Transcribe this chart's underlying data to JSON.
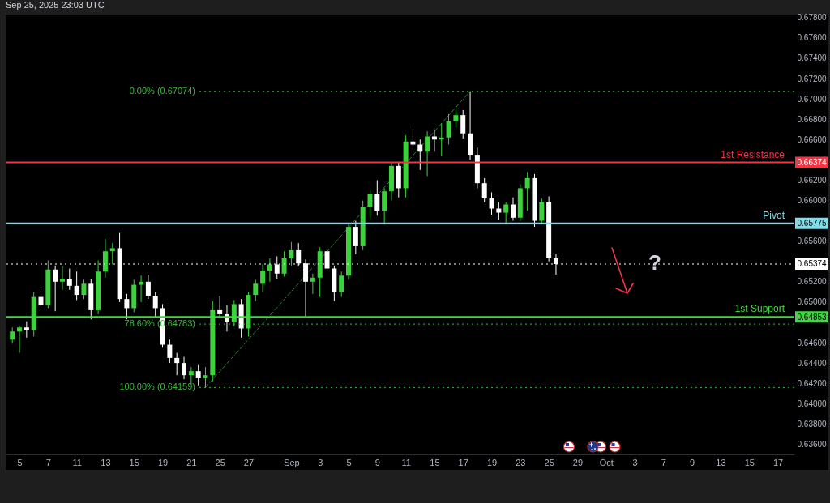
{
  "chart_data": {
    "type": "candlestick",
    "title": "Sep 25, 2025 23:03 UTC",
    "categories": [
      null,
      "5",
      null,
      null,
      null,
      "7",
      null,
      null,
      null,
      "11",
      null,
      null,
      null,
      "13",
      null,
      null,
      null,
      "15",
      null,
      null,
      null,
      "19",
      null,
      null,
      null,
      "21",
      null,
      null,
      null,
      "25",
      null,
      null,
      null,
      "27",
      null,
      null,
      null,
      null,
      null,
      "Sep",
      null,
      null,
      null,
      "3",
      null,
      null,
      null,
      "5",
      null,
      null,
      null,
      "9",
      null,
      null,
      null,
      "11",
      null,
      null,
      null,
      "15",
      null,
      null,
      null,
      "17",
      null,
      null,
      null,
      "19",
      null,
      null,
      null,
      "23",
      null,
      null,
      null,
      "25",
      null,
      null,
      null,
      "29",
      null,
      null,
      null,
      "Oct",
      null,
      null,
      null,
      "3",
      null,
      null,
      null,
      "7",
      null,
      null,
      null,
      "9",
      null,
      null,
      null,
      "13",
      null,
      null,
      null,
      "15",
      null,
      null,
      null,
      "17",
      null
    ],
    "ohlc": [
      [
        0.6463,
        0.6475,
        0.6459,
        0.6471
      ],
      [
        0.6471,
        0.6477,
        0.645,
        0.6475
      ],
      [
        0.6475,
        0.6481,
        0.6465,
        0.6472
      ],
      [
        0.6472,
        0.651,
        0.6466,
        0.6505
      ],
      [
        0.6505,
        0.6511,
        0.6494,
        0.6497
      ],
      [
        0.6497,
        0.6541,
        0.6494,
        0.6532
      ],
      [
        0.6532,
        0.6536,
        0.6491,
        0.652
      ],
      [
        0.652,
        0.6535,
        0.6512,
        0.6523
      ],
      [
        0.6523,
        0.6533,
        0.6512,
        0.6516
      ],
      [
        0.6516,
        0.653,
        0.6502,
        0.6507
      ],
      [
        0.6507,
        0.6522,
        0.6503,
        0.6518
      ],
      [
        0.6518,
        0.6523,
        0.6483,
        0.6492
      ],
      [
        0.6492,
        0.6541,
        0.6488,
        0.653
      ],
      [
        0.653,
        0.6562,
        0.6524,
        0.655
      ],
      [
        0.655,
        0.6558,
        0.6537,
        0.6553
      ],
      [
        0.6553,
        0.6568,
        0.65,
        0.6503
      ],
      [
        0.6503,
        0.6508,
        0.6483,
        0.6494
      ],
      [
        0.6494,
        0.6522,
        0.649,
        0.6517
      ],
      [
        0.6517,
        0.6526,
        0.65,
        0.652
      ],
      [
        0.652,
        0.6527,
        0.6503,
        0.6506
      ],
      [
        0.6506,
        0.651,
        0.6484,
        0.6494
      ],
      [
        0.6494,
        0.6498,
        0.6455,
        0.6458
      ],
      [
        0.6458,
        0.6463,
        0.644,
        0.6445
      ],
      [
        0.6445,
        0.645,
        0.6428,
        0.644
      ],
      [
        0.644,
        0.6446,
        0.6424,
        0.6428
      ],
      [
        0.6428,
        0.6436,
        0.6419,
        0.6432
      ],
      [
        0.6432,
        0.6438,
        0.6418,
        0.6425
      ],
      [
        0.6425,
        0.6436,
        0.64159,
        0.6428
      ],
      [
        0.6428,
        0.6501,
        0.6422,
        0.6492
      ],
      [
        0.6492,
        0.6506,
        0.6484,
        0.6488
      ],
      [
        0.6488,
        0.6497,
        0.6471,
        0.648
      ],
      [
        0.648,
        0.6502,
        0.6476,
        0.6498
      ],
      [
        0.6498,
        0.6503,
        0.6465,
        0.6474
      ],
      [
        0.6474,
        0.651,
        0.6466,
        0.6507
      ],
      [
        0.6507,
        0.6522,
        0.6501,
        0.6518
      ],
      [
        0.6518,
        0.6537,
        0.651,
        0.6531
      ],
      [
        0.6531,
        0.6543,
        0.652,
        0.6537
      ],
      [
        0.6537,
        0.6545,
        0.6523,
        0.6528
      ],
      [
        0.6528,
        0.655,
        0.6525,
        0.6543
      ],
      [
        0.6543,
        0.6559,
        0.6536,
        0.6551
      ],
      [
        0.6551,
        0.6558,
        0.6535,
        0.6538
      ],
      [
        0.6538,
        0.6542,
        0.64853,
        0.652
      ],
      [
        0.652,
        0.6528,
        0.6508,
        0.6524
      ],
      [
        0.6524,
        0.6554,
        0.6505,
        0.655
      ],
      [
        0.655,
        0.6555,
        0.653,
        0.6533
      ],
      [
        0.6533,
        0.6536,
        0.6501,
        0.651
      ],
      [
        0.651,
        0.653,
        0.6505,
        0.6526
      ],
      [
        0.6526,
        0.6578,
        0.6522,
        0.6574
      ],
      [
        0.6574,
        0.658,
        0.6547,
        0.6555
      ],
      [
        0.6555,
        0.66,
        0.6551,
        0.6594
      ],
      [
        0.6594,
        0.661,
        0.6583,
        0.6606
      ],
      [
        0.6606,
        0.662,
        0.6585,
        0.659
      ],
      [
        0.659,
        0.6612,
        0.65775,
        0.6609
      ],
      [
        0.6609,
        0.6637,
        0.66,
        0.6634
      ],
      [
        0.6634,
        0.6638,
        0.6603,
        0.6612
      ],
      [
        0.6612,
        0.6664,
        0.6603,
        0.6658
      ],
      [
        0.6658,
        0.667,
        0.665,
        0.6655
      ],
      [
        0.6655,
        0.666,
        0.663,
        0.6648
      ],
      [
        0.6648,
        0.6668,
        0.6624,
        0.6663
      ],
      [
        0.6663,
        0.667,
        0.6648,
        0.666
      ],
      [
        0.666,
        0.6676,
        0.6644,
        0.6662
      ],
      [
        0.6662,
        0.6685,
        0.6655,
        0.6678
      ],
      [
        0.6678,
        0.669,
        0.6672,
        0.6684
      ],
      [
        0.6684,
        0.6689,
        0.6661,
        0.6666
      ],
      [
        0.6666,
        0.67074,
        0.664,
        0.6645
      ],
      [
        0.6645,
        0.6652,
        0.6612,
        0.6617
      ],
      [
        0.6617,
        0.6622,
        0.6598,
        0.6602
      ],
      [
        0.6602,
        0.6608,
        0.6586,
        0.6592
      ],
      [
        0.6592,
        0.6598,
        0.6581,
        0.6588
      ],
      [
        0.6588,
        0.6598,
        0.6578,
        0.6596
      ],
      [
        0.6596,
        0.6603,
        0.658,
        0.6583
      ],
      [
        0.6583,
        0.6616,
        0.658,
        0.6612
      ],
      [
        0.6612,
        0.6628,
        0.659,
        0.6622
      ],
      [
        0.6622,
        0.6626,
        0.6574,
        0.658
      ],
      [
        0.658,
        0.6602,
        0.6577,
        0.6598
      ],
      [
        0.6598,
        0.6604,
        0.654,
        0.6543
      ],
      [
        0.6543,
        0.6547,
        0.6527,
        0.65374
      ],
      null,
      null,
      null,
      null,
      null,
      null,
      null,
      null,
      null,
      null,
      null,
      null,
      null,
      null,
      null,
      null,
      null,
      null,
      null,
      null,
      null,
      null,
      null,
      null,
      null,
      null,
      null,
      null,
      null,
      null,
      null,
      null
    ],
    "colors": [
      "#3cd23c",
      "#3cd23c",
      "#ffffff",
      "#3cd23c",
      "#ffffff",
      "#3cd23c",
      "#ffffff",
      "#3cd23c",
      "#ffffff",
      "#ffffff",
      "#3cd23c",
      "#ffffff",
      "#3cd23c",
      "#3cd23c",
      "#3cd23c",
      "#ffffff",
      "#ffffff",
      "#3cd23c",
      "#3cd23c",
      "#ffffff",
      "#ffffff",
      "#ffffff",
      "#ffffff",
      "#ffffff",
      "#ffffff",
      "#3cd23c",
      "#ffffff",
      "#3cd23c",
      "#3cd23c",
      "#ffffff",
      "#ffffff",
      "#3cd23c",
      "#ffffff",
      "#3cd23c",
      "#3cd23c",
      "#3cd23c",
      "#3cd23c",
      "#ffffff",
      "#3cd23c",
      "#3cd23c",
      "#ffffff",
      "#ffffff",
      "#3cd23c",
      "#3cd23c",
      "#ffffff",
      "#ffffff",
      "#3cd23c",
      "#3cd23c",
      "#ffffff",
      "#3cd23c",
      "#3cd23c",
      "#ffffff",
      "#3cd23c",
      "#3cd23c",
      "#ffffff",
      "#3cd23c",
      "#ffffff",
      "#ffffff",
      "#3cd23c",
      "#ffffff",
      "#3cd23c",
      "#3cd23c",
      "#3cd23c",
      "#ffffff",
      "#ffffff",
      "#ffffff",
      "#ffffff",
      "#ffffff",
      "#ffffff",
      "#3cd23c",
      "#ffffff",
      "#3cd23c",
      "#3cd23c",
      "#ffffff",
      "#3cd23c",
      "#ffffff",
      "#ffffff",
      null,
      null,
      null,
      null,
      null,
      null,
      null,
      null,
      null,
      null,
      null,
      null,
      null,
      null,
      null,
      null,
      null,
      null,
      null,
      null,
      null,
      null,
      null,
      null,
      null,
      null,
      null,
      null,
      null,
      null,
      null,
      null
    ],
    "series": [
      {
        "type": "line",
        "color": "#2e7d32",
        "line_style": "dashed",
        "values": [
          null,
          null,
          null,
          null,
          null,
          null,
          null,
          null,
          null,
          null,
          null,
          null,
          null,
          null,
          null,
          null,
          null,
          null,
          null,
          null,
          null,
          null,
          null,
          null,
          null,
          null,
          null,
          0.64159,
          null,
          null,
          null,
          null,
          null,
          null,
          null,
          null,
          null,
          null,
          null,
          null,
          null,
          null,
          null,
          null,
          null,
          null,
          null,
          null,
          null,
          null,
          null,
          null,
          null,
          null,
          null,
          null,
          null,
          null,
          null,
          null,
          null,
          null,
          null,
          null,
          0.67074,
          null,
          null,
          null,
          null,
          null,
          null,
          null,
          null,
          null,
          null,
          null,
          null,
          null,
          null,
          null,
          null,
          null,
          null,
          null,
          null,
          null,
          null,
          null,
          null,
          null,
          null,
          null,
          null,
          null,
          null,
          null,
          null,
          null,
          null,
          null,
          null,
          null,
          null,
          null,
          null,
          null,
          null,
          null,
          null
        ]
      }
    ],
    "ylim": [
      0.635,
      0.6783
    ],
    "yticks": [
      {
        "value": 0.636,
        "label": "0.63600"
      },
      {
        "value": 0.638,
        "label": "0.63800"
      },
      {
        "value": 0.64,
        "label": "0.64000"
      },
      {
        "value": 0.642,
        "label": "0.64200"
      },
      {
        "value": 0.644,
        "label": "0.64400"
      },
      {
        "value": 0.646,
        "label": "0.64600"
      },
      {
        "value": 0.64853,
        "label": "0.64853"
      },
      {
        "value": 0.65,
        "label": "0.65000"
      },
      {
        "value": 0.652,
        "label": "0.65200"
      },
      {
        "value": 0.65374,
        "label": "0.65374"
      },
      {
        "value": 0.656,
        "label": "0.65600"
      },
      {
        "value": 0.65775,
        "label": "0.65775"
      },
      {
        "value": 0.66,
        "label": "0.66000"
      },
      {
        "value": 0.662,
        "label": "0.66200"
      },
      {
        "value": 0.66374,
        "label": "0.66374"
      },
      {
        "value": 0.666,
        "label": "0.66600"
      },
      {
        "value": 0.668,
        "label": "0.66800"
      },
      {
        "value": 0.67,
        "label": "0.67000"
      },
      {
        "value": 0.672,
        "label": "0.67200"
      },
      {
        "value": 0.674,
        "label": "0.67400"
      },
      {
        "value": 0.676,
        "label": "0.67600"
      },
      {
        "value": 0.678,
        "label": "0.67800"
      }
    ],
    "ref_lines": [
      {
        "axis": "y",
        "value": 0.67074,
        "label": "0.00% (0.67074)",
        "color": "#3cb83c",
        "line_style": "dotted"
      },
      {
        "axis": "y",
        "value": 0.64783,
        "label": "78.60% (0.64783)",
        "color": "#3cb83c",
        "line_style": "dotted"
      },
      {
        "axis": "y",
        "value": 0.64159,
        "label": "100.00% (0.64159)",
        "color": "#3cb83c",
        "line_style": "dotted"
      },
      {
        "axis": "y",
        "value": 0.66374,
        "label": "1st Resistance",
        "color": "#f23645",
        "line_style": "solid"
      },
      {
        "axis": "y",
        "value": 0.65775,
        "label": "Pivot",
        "color": "#80deea",
        "line_style": "solid"
      },
      {
        "axis": "y",
        "value": 0.64853,
        "label": "1st Support",
        "color": "#43d643",
        "line_style": "solid"
      },
      {
        "axis": "y",
        "value": 0.65374,
        "label": null,
        "color": "#ffffff",
        "line_style": "dotted"
      }
    ],
    "annotations": [
      "?"
    ]
  }
}
